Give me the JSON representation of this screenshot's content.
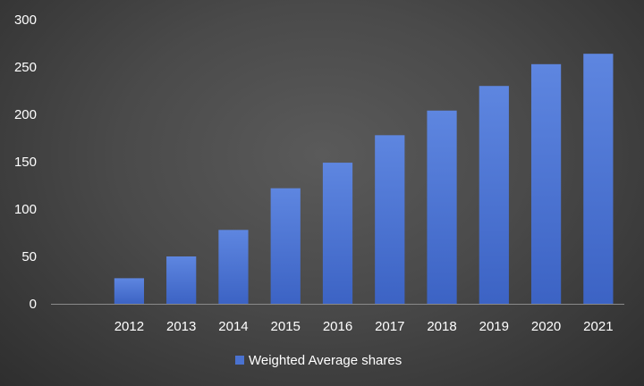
{
  "chart_data": {
    "type": "bar",
    "categories": [
      "",
      "2012",
      "2013",
      "2014",
      "2015",
      "2016",
      "2017",
      "2018",
      "2019",
      "2020",
      "2021"
    ],
    "series": [
      {
        "name": "Weighted Average shares",
        "values": [
          null,
          27,
          50,
          78,
          122,
          149,
          178,
          204,
          230,
          253,
          264
        ],
        "color": "#4a72d0"
      }
    ],
    "yticks": [
      "0",
      "50",
      "100",
      "150",
      "200",
      "250",
      "300"
    ],
    "ylim": [
      0,
      300
    ],
    "grid": false,
    "legend_position": "bottom"
  }
}
